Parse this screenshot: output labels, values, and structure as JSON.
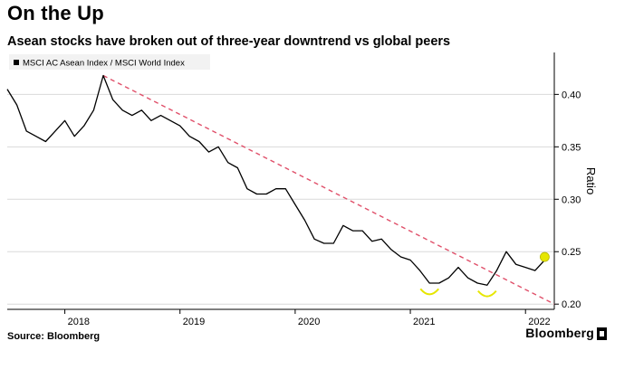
{
  "header": {
    "title": "On the Up",
    "subtitle": "Asean stocks have broken out of three-year downtrend vs global peers"
  },
  "footer": {
    "source": "Source: Bloomberg",
    "brand": "Bloomberg"
  },
  "colors": {
    "line": "#000000",
    "trend": "#e0506a",
    "highlight": "#e6e600",
    "grid": "#d9d9d9"
  },
  "chart_data": {
    "type": "line",
    "legend": "MSCI AC Asean Index / MSCI World Index",
    "legend_position": "top-left",
    "ylabel": "Ratio",
    "ylim": [
      0.195,
      0.44
    ],
    "y_ticks": [
      0.2,
      0.25,
      0.3,
      0.35,
      0.4
    ],
    "y_tick_labels": [
      "0.20",
      "0.25",
      "0.30",
      "0.35",
      "0.40"
    ],
    "x_range": [
      "2017-07",
      "2022-04"
    ],
    "x_ticks": [
      "2018-01",
      "2019-01",
      "2020-01",
      "2021-01",
      "2022-01"
    ],
    "x_tick_labels": [
      "2018",
      "2019",
      "2020",
      "2021",
      "2022"
    ],
    "grid": "horizontal",
    "series": [
      {
        "name": "MSCI AC Asean Index / MSCI World Index",
        "x": [
          "2017-07",
          "2017-08",
          "2017-09",
          "2017-10",
          "2017-11",
          "2017-12",
          "2018-01",
          "2018-02",
          "2018-03",
          "2018-04",
          "2018-05",
          "2018-06",
          "2018-07",
          "2018-08",
          "2018-09",
          "2018-10",
          "2018-11",
          "2018-12",
          "2019-01",
          "2019-02",
          "2019-03",
          "2019-04",
          "2019-05",
          "2019-06",
          "2019-07",
          "2019-08",
          "2019-09",
          "2019-10",
          "2019-11",
          "2019-12",
          "2020-01",
          "2020-02",
          "2020-03",
          "2020-04",
          "2020-05",
          "2020-06",
          "2020-07",
          "2020-08",
          "2020-09",
          "2020-10",
          "2020-11",
          "2020-12",
          "2021-01",
          "2021-02",
          "2021-03",
          "2021-04",
          "2021-05",
          "2021-06",
          "2021-07",
          "2021-08",
          "2021-09",
          "2021-10",
          "2021-11",
          "2021-12",
          "2022-01",
          "2022-02",
          "2022-03"
        ],
        "values": [
          0.405,
          0.39,
          0.365,
          0.36,
          0.355,
          0.365,
          0.375,
          0.36,
          0.37,
          0.385,
          0.418,
          0.395,
          0.385,
          0.38,
          0.385,
          0.375,
          0.38,
          0.375,
          0.37,
          0.36,
          0.355,
          0.345,
          0.35,
          0.335,
          0.33,
          0.31,
          0.305,
          0.305,
          0.31,
          0.31,
          0.295,
          0.28,
          0.262,
          0.258,
          0.258,
          0.275,
          0.27,
          0.27,
          0.26,
          0.262,
          0.252,
          0.245,
          0.242,
          0.232,
          0.22,
          0.22,
          0.225,
          0.235,
          0.225,
          0.22,
          0.218,
          0.232,
          0.25,
          0.238,
          0.235,
          0.232,
          0.242
        ]
      }
    ],
    "trendline": {
      "start": [
        "2018-05",
        0.418
      ],
      "end": [
        "2022-04",
        0.2
      ]
    },
    "highlights": [
      {
        "x": "2021-03",
        "y": 0.218
      },
      {
        "x": "2021-09",
        "y": 0.216
      },
      {
        "x": "2022-03",
        "y": 0.245
      }
    ]
  }
}
